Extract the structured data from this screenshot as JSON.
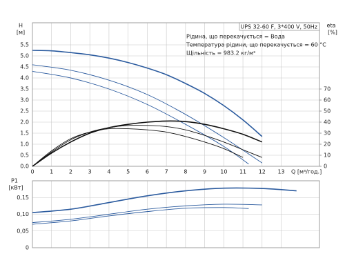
{
  "chart_data": [
    {
      "type": "line",
      "xlabel": "Q [м³/год.]",
      "ylabel": "H",
      "yunit": "[м]",
      "y2label": "eta",
      "y2unit": "[%]",
      "info": [
        "UPS 32-60 F, 3*400 V, 50Hz",
        "Рідина, що перекачується = Вода",
        "Температура рідини, що перекачується = 60 °C",
        "Щільність = 983.2 кг/м³"
      ],
      "xlim": [
        0,
        15
      ],
      "xticks": [
        0,
        1,
        2,
        3,
        4,
        5,
        6,
        7,
        8,
        9,
        10,
        11,
        12,
        13
      ],
      "ylim": [
        0,
        6.5
      ],
      "yticks": [
        {
          "value": 0,
          "label": "0.0"
        },
        0.5,
        {
          "value": 1,
          "label": "1.0"
        },
        1.5,
        {
          "value": 2,
          "label": "2.0"
        },
        2.5,
        {
          "value": 3,
          "label": "3.0"
        },
        3.5,
        {
          "value": 4,
          "label": "4.0"
        },
        4.5,
        {
          "value": 5,
          "label": "5.0"
        },
        5.5
      ],
      "y2lim": [
        0,
        130
      ],
      "y2ticks": [
        0,
        10,
        20,
        30,
        40,
        50,
        60,
        70
      ],
      "grid": true,
      "series": [
        {
          "color": "#2a5a9e",
          "x": [
            0,
            1,
            2,
            3,
            4,
            5,
            6,
            7,
            8,
            9,
            10,
            11,
            12
          ],
          "values": [
            5.25,
            5.23,
            5.15,
            5.05,
            4.9,
            4.7,
            4.45,
            4.15,
            3.75,
            3.3,
            2.75,
            2.1,
            1.35
          ]
        },
        {
          "color": "#2a5a9e",
          "x": [
            0,
            2,
            4,
            6,
            8,
            10,
            12
          ],
          "values": [
            4.6,
            4.35,
            3.9,
            3.25,
            2.35,
            1.3,
            0.15
          ]
        },
        {
          "color": "#2a5a9e",
          "x": [
            0,
            2,
            4,
            6,
            8,
            10,
            11.3
          ],
          "values": [
            4.3,
            4.0,
            3.5,
            2.8,
            1.9,
            0.9,
            0.1
          ]
        },
        {
          "color": "#111111",
          "axis": "y2",
          "x": [
            0,
            1,
            2,
            3,
            4,
            5,
            6,
            7,
            8,
            9,
            10,
            11,
            12
          ],
          "values": [
            0,
            12,
            22,
            30,
            35,
            38,
            40,
            41,
            40.5,
            38,
            34,
            29,
            22
          ]
        },
        {
          "color": "#111111",
          "axis": "y2",
          "x": [
            0,
            1,
            2,
            3,
            4,
            5,
            6,
            7,
            8,
            9,
            10,
            11,
            12
          ],
          "values": [
            0,
            13,
            24,
            31,
            35,
            37,
            37,
            36,
            33,
            28,
            22,
            15,
            8
          ]
        },
        {
          "color": "#111111",
          "axis": "y2",
          "x": [
            0,
            1,
            2,
            3,
            4,
            5,
            6,
            7,
            8,
            9,
            10,
            11
          ],
          "values": [
            0,
            14,
            25,
            31,
            34,
            34,
            33,
            31,
            27,
            22,
            16,
            8
          ]
        }
      ]
    },
    {
      "type": "line",
      "ylabel": "P1",
      "yunit": "[кВт]",
      "xlim": [
        0,
        15
      ],
      "xticks": [
        0,
        1,
        2,
        3,
        4,
        5,
        6,
        7,
        8,
        9,
        10,
        11,
        12,
        13
      ],
      "ylim": [
        0,
        0.2
      ],
      "yticks": [
        0,
        {
          "value": 0.05,
          "label": "0,05"
        },
        {
          "value": 0.1,
          "label": "0,10"
        },
        {
          "value": 0.15,
          "label": "0,15"
        }
      ],
      "grid": true,
      "series": [
        {
          "color": "#2a5a9e",
          "x": [
            0,
            2,
            4,
            6,
            8,
            10,
            12,
            13.8
          ],
          "values": [
            0.105,
            0.115,
            0.135,
            0.155,
            0.17,
            0.178,
            0.177,
            0.17
          ]
        },
        {
          "color": "#2a5a9e",
          "x": [
            0,
            2,
            4,
            6,
            8,
            10,
            12
          ],
          "values": [
            0.075,
            0.085,
            0.1,
            0.115,
            0.125,
            0.13,
            0.128
          ]
        },
        {
          "color": "#2a5a9e",
          "x": [
            0,
            2,
            4,
            6,
            8,
            10,
            11.3
          ],
          "values": [
            0.07,
            0.08,
            0.095,
            0.108,
            0.118,
            0.12,
            0.117
          ]
        }
      ]
    }
  ]
}
